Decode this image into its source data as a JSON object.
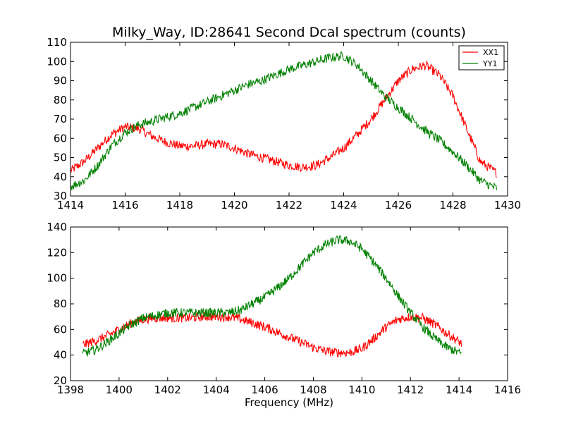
{
  "chart_data": [
    {
      "type": "line",
      "title": "Milky_Way, ID:28641 Second Dcal spectrum (counts)",
      "xlabel": "",
      "ylabel": "",
      "xlim": [
        1414,
        1430
      ],
      "ylim": [
        30,
        110
      ],
      "xticks": [
        "1414",
        "1416",
        "1418",
        "1420",
        "1422",
        "1424",
        "1426",
        "1428",
        "1430"
      ],
      "yticks": [
        "30",
        "40",
        "50",
        "60",
        "70",
        "80",
        "90",
        "100",
        "110"
      ],
      "legend": {
        "placement": "top-right",
        "entries": [
          "XX1",
          "YY1"
        ]
      },
      "grid": false,
      "series": [
        {
          "name": "XX1",
          "color": "#ff0000",
          "x": [
            1414.0,
            1414.5,
            1415.0,
            1415.5,
            1416.0,
            1416.5,
            1417.0,
            1417.5,
            1418.0,
            1418.5,
            1419.0,
            1419.5,
            1420.0,
            1420.5,
            1421.0,
            1421.5,
            1422.0,
            1422.5,
            1423.0,
            1423.5,
            1424.0,
            1424.5,
            1425.0,
            1425.5,
            1426.0,
            1426.5,
            1427.0,
            1427.5,
            1428.0,
            1428.5,
            1429.0,
            1429.6
          ],
          "y": [
            43,
            48,
            55,
            62,
            66,
            65,
            61,
            58,
            56,
            56,
            57,
            57,
            55,
            52,
            50,
            48,
            46,
            45,
            46,
            50,
            55,
            62,
            70,
            80,
            90,
            96,
            98,
            93,
            82,
            65,
            48,
            42
          ]
        },
        {
          "name": "YY1",
          "color": "#008000",
          "x": [
            1414.0,
            1414.5,
            1415.0,
            1415.5,
            1416.0,
            1416.5,
            1417.0,
            1417.5,
            1418.0,
            1418.5,
            1419.0,
            1419.5,
            1420.0,
            1420.5,
            1421.0,
            1421.5,
            1422.0,
            1422.5,
            1423.0,
            1423.5,
            1424.0,
            1424.5,
            1425.0,
            1425.5,
            1426.0,
            1426.5,
            1427.0,
            1427.5,
            1428.0,
            1428.5,
            1429.0,
            1429.6
          ],
          "y": [
            35,
            38,
            46,
            56,
            63,
            67,
            69,
            71,
            73,
            76,
            79,
            82,
            85,
            88,
            90,
            93,
            96,
            98,
            100,
            102,
            103,
            98,
            90,
            82,
            76,
            70,
            64,
            59,
            53,
            46,
            38,
            34
          ]
        }
      ]
    },
    {
      "type": "line",
      "title": "",
      "xlabel": "Frequency (MHz)",
      "ylabel": "",
      "xlim": [
        1398,
        1416
      ],
      "ylim": [
        20,
        140
      ],
      "xticks": [
        "1398",
        "1400",
        "1402",
        "1404",
        "1406",
        "1408",
        "1410",
        "1412",
        "1414",
        "1416"
      ],
      "yticks": [
        "20",
        "40",
        "60",
        "80",
        "100",
        "120",
        "140"
      ],
      "grid": false,
      "series": [
        {
          "color": "#ff0000",
          "x": [
            1398.5,
            1399.0,
            1399.5,
            1400.0,
            1400.5,
            1401.0,
            1401.5,
            1402.0,
            1402.5,
            1403.0,
            1403.5,
            1404.0,
            1404.5,
            1405.0,
            1405.5,
            1406.0,
            1406.5,
            1407.0,
            1407.5,
            1408.0,
            1408.5,
            1409.0,
            1409.5,
            1410.0,
            1410.5,
            1411.0,
            1411.5,
            1412.0,
            1412.5,
            1413.0,
            1413.5,
            1414.1
          ],
          "y": [
            48,
            51,
            55,
            60,
            65,
            68,
            69,
            69,
            69,
            69,
            70,
            70,
            70,
            68,
            65,
            62,
            58,
            54,
            50,
            46,
            43,
            42,
            42,
            45,
            53,
            62,
            68,
            70,
            69,
            64,
            57,
            49
          ]
        },
        {
          "color": "#008000",
          "x": [
            1398.5,
            1399.0,
            1399.5,
            1400.0,
            1400.5,
            1401.0,
            1401.5,
            1402.0,
            1402.5,
            1403.0,
            1403.5,
            1404.0,
            1404.5,
            1405.0,
            1405.5,
            1406.0,
            1406.5,
            1407.0,
            1407.5,
            1408.0,
            1408.5,
            1409.0,
            1409.5,
            1410.0,
            1410.5,
            1411.0,
            1411.5,
            1412.0,
            1412.5,
            1413.0,
            1413.5,
            1414.1
          ],
          "y": [
            41,
            44,
            50,
            57,
            64,
            69,
            71,
            73,
            73,
            73,
            73,
            73,
            73,
            75,
            80,
            85,
            92,
            100,
            110,
            120,
            126,
            130,
            129,
            123,
            112,
            100,
            86,
            73,
            62,
            53,
            46,
            41
          ]
        }
      ]
    }
  ]
}
